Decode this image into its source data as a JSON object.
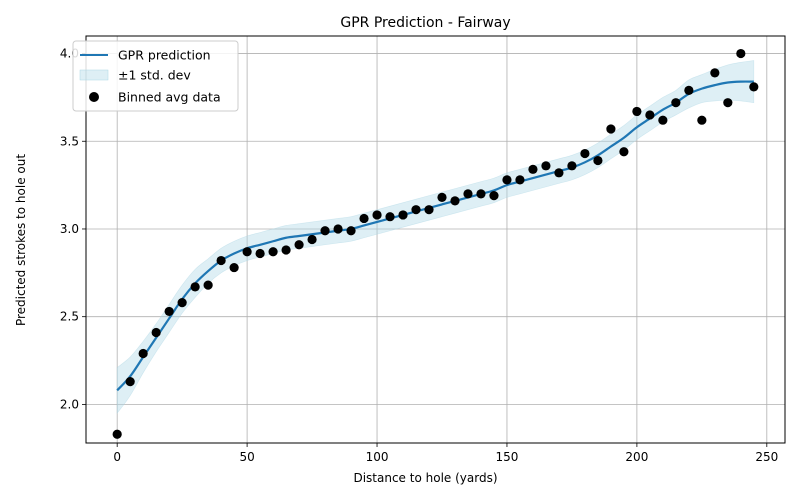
{
  "chart_data": {
    "type": "line",
    "title": "GPR Prediction - Fairway",
    "xlabel": "Distance to hole (yards)",
    "ylabel": "Predicted strokes to hole out",
    "xlim": [
      -12,
      257
    ],
    "ylim": [
      1.78,
      4.1
    ],
    "xticks": [
      0,
      50,
      100,
      150,
      200,
      250
    ],
    "yticks": [
      2.0,
      2.5,
      3.0,
      3.5,
      4.0
    ],
    "grid": true,
    "legend_position": "top-left",
    "colors": {
      "prediction": "#1f77b4",
      "band": "#add8e6",
      "points": "#000000"
    },
    "legend": {
      "prediction_label": "GPR prediction",
      "band_label": "±1 std. dev",
      "points_label": "Binned avg data"
    },
    "prediction": {
      "x": [
        0,
        5,
        10,
        15,
        20,
        25,
        30,
        35,
        40,
        45,
        50,
        55,
        60,
        65,
        70,
        75,
        80,
        85,
        90,
        95,
        100,
        105,
        110,
        115,
        120,
        125,
        130,
        135,
        140,
        145,
        150,
        155,
        160,
        165,
        170,
        175,
        180,
        185,
        190,
        195,
        200,
        205,
        210,
        215,
        220,
        225,
        230,
        235,
        240,
        245
      ],
      "y": [
        2.08,
        2.16,
        2.27,
        2.38,
        2.49,
        2.6,
        2.69,
        2.76,
        2.82,
        2.86,
        2.89,
        2.91,
        2.93,
        2.95,
        2.96,
        2.97,
        2.98,
        2.99,
        3.0,
        3.02,
        3.04,
        3.06,
        3.08,
        3.1,
        3.12,
        3.14,
        3.16,
        3.18,
        3.2,
        3.22,
        3.25,
        3.27,
        3.29,
        3.31,
        3.33,
        3.35,
        3.38,
        3.42,
        3.47,
        3.52,
        3.58,
        3.63,
        3.68,
        3.72,
        3.77,
        3.8,
        3.82,
        3.835,
        3.84,
        3.84
      ],
      "std": [
        0.13,
        0.11,
        0.09,
        0.08,
        0.08,
        0.08,
        0.08,
        0.07,
        0.07,
        0.07,
        0.07,
        0.07,
        0.07,
        0.07,
        0.07,
        0.07,
        0.07,
        0.07,
        0.07,
        0.07,
        0.07,
        0.07,
        0.07,
        0.07,
        0.07,
        0.07,
        0.07,
        0.07,
        0.07,
        0.07,
        0.07,
        0.07,
        0.07,
        0.07,
        0.07,
        0.07,
        0.07,
        0.07,
        0.07,
        0.07,
        0.07,
        0.07,
        0.07,
        0.07,
        0.08,
        0.08,
        0.09,
        0.1,
        0.11,
        0.12
      ]
    },
    "points": {
      "x": [
        0,
        5,
        10,
        15,
        20,
        25,
        30,
        35,
        40,
        45,
        50,
        55,
        60,
        65,
        70,
        75,
        80,
        85,
        90,
        95,
        100,
        105,
        110,
        115,
        120,
        125,
        130,
        135,
        140,
        145,
        150,
        155,
        160,
        165,
        170,
        175,
        180,
        185,
        190,
        195,
        200,
        205,
        210,
        215,
        220,
        225,
        230,
        235,
        240,
        245
      ],
      "y": [
        1.83,
        2.13,
        2.29,
        2.41,
        2.53,
        2.58,
        2.67,
        2.68,
        2.82,
        2.78,
        2.87,
        2.86,
        2.87,
        2.88,
        2.91,
        2.94,
        2.99,
        3.0,
        2.99,
        3.06,
        3.08,
        3.07,
        3.08,
        3.11,
        3.11,
        3.18,
        3.16,
        3.2,
        3.2,
        3.19,
        3.28,
        3.28,
        3.34,
        3.36,
        3.32,
        3.36,
        3.43,
        3.39,
        3.57,
        3.44,
        3.67,
        3.65,
        3.62,
        3.72,
        3.79,
        3.62,
        3.89,
        3.72,
        4.0,
        3.81
      ]
    }
  }
}
